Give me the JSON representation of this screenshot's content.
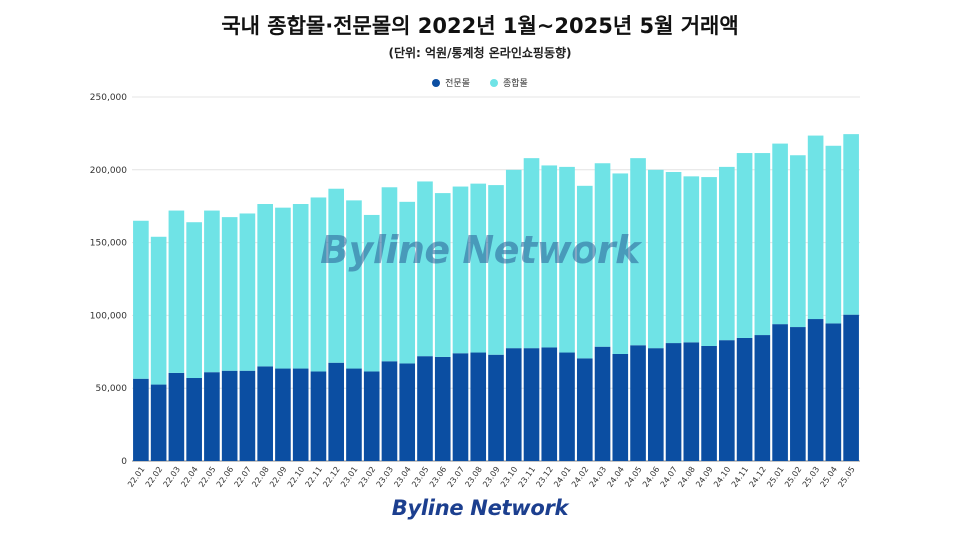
{
  "chart_data": {
    "type": "bar",
    "stacked": true,
    "title": "국내 종합몰·전문몰의 2022년 1월~2025년 5월 거래액",
    "subtitle": "(단위: 억원/통계청 온라인쇼핑동향)",
    "legend_position": "top-center",
    "grid": true,
    "ylim": [
      0,
      250000
    ],
    "yticks": [
      "0",
      "50,000",
      "100,000",
      "150,000",
      "200,000",
      "250,000"
    ],
    "categories": [
      "22.01",
      "22.02",
      "22.03",
      "22.04",
      "22.05",
      "22.06",
      "22.07",
      "22.08",
      "22.09",
      "22.10",
      "22.11",
      "22.12",
      "23.01",
      "23.02",
      "23.03",
      "23.04",
      "23.05",
      "23.06",
      "23.07",
      "23.08",
      "23.09",
      "23.10",
      "23.11",
      "23.12",
      "24.01",
      "24.02",
      "24.03",
      "24.04",
      "24.05",
      "24.06",
      "24.07",
      "24.08",
      "24.09",
      "24.10",
      "24.11",
      "24.12",
      "25.01",
      "25.02",
      "25.03",
      "25.04",
      "25.05"
    ],
    "series": [
      {
        "name": "전문몰",
        "color": "#0b4ea2",
        "values": [
          56500,
          52500,
          60500,
          57000,
          61000,
          62000,
          62000,
          65000,
          63500,
          63500,
          61500,
          67500,
          63500,
          61500,
          68500,
          67000,
          72000,
          71500,
          74000,
          74500,
          73000,
          77500,
          77500,
          78000,
          74500,
          70500,
          78500,
          73500,
          79500,
          77500,
          81000,
          81500,
          79000,
          83000,
          84500,
          86500,
          94000,
          92000,
          97500,
          94500,
          100500
        ]
      },
      {
        "name": "종합몰",
        "color": "#6fe3e6",
        "values": [
          108500,
          101500,
          111500,
          107000,
          111000,
          105500,
          108000,
          111500,
          110500,
          113000,
          119500,
          119500,
          115500,
          107500,
          119500,
          111000,
          120000,
          112500,
          114500,
          116000,
          116500,
          122500,
          130500,
          125000,
          127500,
          118500,
          126000,
          124000,
          128500,
          122500,
          117500,
          114000,
          116000,
          119000,
          127000,
          125000,
          124000,
          118000,
          126000,
          122000,
          124000
        ]
      }
    ]
  },
  "brand": {
    "watermark": "Byline Network",
    "footer": "Byline Network"
  }
}
